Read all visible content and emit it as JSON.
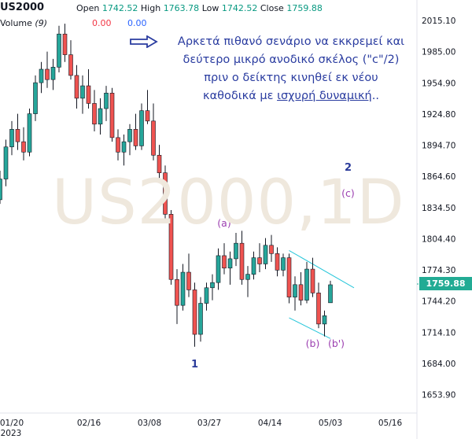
{
  "header": {
    "symbol": "US2000",
    "open_label": "Open",
    "open_value": "1742.52",
    "high_label": "High",
    "high_value": "1763.78",
    "low_label": "Low",
    "low_value": "1742.52",
    "close_label": "Close",
    "close_value": "1759.88",
    "volume_label": "Volume",
    "volume_period": "(9)",
    "volume_value_1": "0.00",
    "volume_value_2": "0.00"
  },
  "annotation": {
    "line1": "Αρκετά πιθανό σενάριο να εκκρεμεί και",
    "line2": "δεύτερο μικρό ανοδικό σκέλος (\"c\"/2)",
    "line3": "πριν ο δείκτης κινηθεί εκ νέου",
    "line4_prefix": "καθοδικά με ",
    "line4_underlined": "ισχυρή δυναμική",
    "line4_suffix": ".."
  },
  "watermark": "US2000,1D",
  "price_tag": "1759.88",
  "colors": {
    "up": "#26a69a",
    "down": "#ef5350",
    "note": "#2a3ca0",
    "wave_blue": "#2b3b9a",
    "wave_purple": "#9c3fb0",
    "channel": "#26c6da",
    "price_tag": "#22ab94"
  },
  "chart_data": {
    "type": "candlestick",
    "y_ticks": [
      "2015.10",
      "1985.00",
      "1954.90",
      "1924.80",
      "1894.70",
      "1864.60",
      "1834.50",
      "1804.40",
      "1774.30",
      "1744.20",
      "1714.10",
      "1684.00",
      "1653.90"
    ],
    "x_ticks": [
      "01/20",
      "02/16",
      "03/08",
      "03/27",
      "04/14",
      "05/03",
      "05/16"
    ],
    "x_year": "2023",
    "ylim": [
      1636,
      2022
    ],
    "wave_labels": [
      {
        "text": "2",
        "kind": "blue",
        "date_index": 59,
        "price": 1870
      },
      {
        "text": "(c)",
        "kind": "purple",
        "date_index": 59,
        "price": 1845
      },
      {
        "text": "(a)",
        "kind": "purple",
        "date_index": 38,
        "price": 1816
      },
      {
        "text": "1",
        "kind": "blue",
        "date_index": 33,
        "price": 1680
      },
      {
        "text": "(b)",
        "kind": "purple",
        "date_index": 53,
        "price": 1700
      },
      {
        "text": "(b')",
        "kind": "purple",
        "date_index": 57,
        "price": 1700
      }
    ],
    "channel": [
      {
        "from": [
          49,
          1793
        ],
        "to": [
          60,
          1757
        ]
      },
      {
        "from": [
          49,
          1728
        ],
        "to": [
          56,
          1708
        ]
      }
    ],
    "candles": [
      [
        1842,
        1870,
        1838,
        1862
      ],
      [
        1862,
        1900,
        1855,
        1893
      ],
      [
        1893,
        1918,
        1885,
        1910
      ],
      [
        1910,
        1925,
        1890,
        1898
      ],
      [
        1898,
        1912,
        1880,
        1888
      ],
      [
        1888,
        1930,
        1884,
        1925
      ],
      [
        1925,
        1962,
        1918,
        1955
      ],
      [
        1955,
        1975,
        1945,
        1968
      ],
      [
        1968,
        1985,
        1950,
        1958
      ],
      [
        1958,
        1978,
        1948,
        1970
      ],
      [
        1970,
        2010,
        1965,
        2002
      ],
      [
        2002,
        2012,
        1975,
        1982
      ],
      [
        1982,
        1996,
        1958,
        1962
      ],
      [
        1962,
        1972,
        1930,
        1940
      ],
      [
        1940,
        1962,
        1925,
        1952
      ],
      [
        1952,
        1968,
        1930,
        1935
      ],
      [
        1935,
        1948,
        1908,
        1915
      ],
      [
        1915,
        1940,
        1905,
        1930
      ],
      [
        1930,
        1952,
        1918,
        1945
      ],
      [
        1945,
        1950,
        1898,
        1902
      ],
      [
        1902,
        1910,
        1880,
        1888
      ],
      [
        1888,
        1905,
        1875,
        1898
      ],
      [
        1898,
        1915,
        1885,
        1910
      ],
      [
        1910,
        1925,
        1890,
        1894
      ],
      [
        1894,
        1935,
        1890,
        1928
      ],
      [
        1928,
        1948,
        1915,
        1918
      ],
      [
        1918,
        1935,
        1880,
        1885
      ],
      [
        1885,
        1895,
        1860,
        1868
      ],
      [
        1868,
        1875,
        1820,
        1828
      ],
      [
        1828,
        1832,
        1760,
        1765
      ],
      [
        1765,
        1775,
        1722,
        1740
      ],
      [
        1740,
        1780,
        1735,
        1772
      ],
      [
        1772,
        1790,
        1748,
        1755
      ],
      [
        1755,
        1762,
        1700,
        1712
      ],
      [
        1712,
        1748,
        1705,
        1742
      ],
      [
        1742,
        1762,
        1735,
        1757
      ],
      [
        1757,
        1770,
        1745,
        1762
      ],
      [
        1762,
        1795,
        1755,
        1788
      ],
      [
        1788,
        1800,
        1770,
        1776
      ],
      [
        1776,
        1792,
        1760,
        1785
      ],
      [
        1785,
        1810,
        1778,
        1800
      ],
      [
        1800,
        1812,
        1760,
        1765
      ],
      [
        1765,
        1778,
        1748,
        1770
      ],
      [
        1770,
        1792,
        1765,
        1786
      ],
      [
        1786,
        1800,
        1772,
        1780
      ],
      [
        1780,
        1805,
        1775,
        1798
      ],
      [
        1798,
        1808,
        1782,
        1790
      ],
      [
        1790,
        1796,
        1768,
        1774
      ],
      [
        1774,
        1790,
        1768,
        1786
      ],
      [
        1786,
        1790,
        1742,
        1748
      ],
      [
        1748,
        1768,
        1735,
        1760
      ],
      [
        1760,
        1772,
        1740,
        1745
      ],
      [
        1745,
        1782,
        1742,
        1775
      ],
      [
        1775,
        1786,
        1748,
        1752
      ],
      [
        1752,
        1762,
        1718,
        1722
      ],
      [
        1722,
        1735,
        1710,
        1730
      ],
      [
        1742.52,
        1763.78,
        1742.52,
        1759.88
      ]
    ]
  }
}
